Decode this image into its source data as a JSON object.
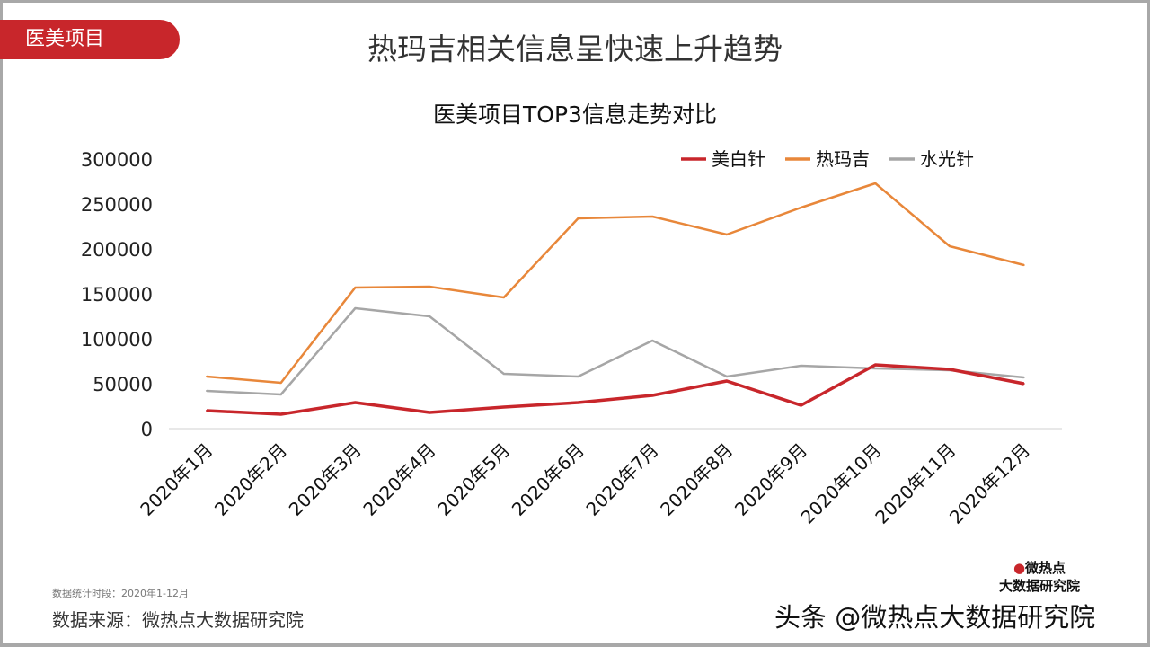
{
  "header": {
    "tag": "医美项目",
    "title": "热玛吉相关信息呈快速上升趋势"
  },
  "chart_data": {
    "type": "line",
    "title": "医美项目TOP3信息走势对比",
    "categories": [
      "2020年1月",
      "2020年2月",
      "2020年3月",
      "2020年4月",
      "2020年5月",
      "2020年6月",
      "2020年7月",
      "2020年8月",
      "2020年9月",
      "2020年10月",
      "2020年11月",
      "2020年12月"
    ],
    "ylim": [
      0,
      300000
    ],
    "yticks": [
      "0",
      "50000",
      "100000",
      "150000",
      "200000",
      "250000",
      "300000"
    ],
    "grid": false,
    "legend_position": "top-right",
    "series": [
      {
        "name": "美白针",
        "color": "#c8262b",
        "values": [
          20000,
          16000,
          29000,
          18000,
          24000,
          29000,
          37000,
          53000,
          26000,
          71000,
          66000,
          50000
        ]
      },
      {
        "name": "热玛吉",
        "color": "#e8873a",
        "values": [
          58000,
          51000,
          157000,
          158000,
          146000,
          234000,
          236000,
          216000,
          246000,
          273000,
          203000,
          182000
        ]
      },
      {
        "name": "水光针",
        "color": "#a6a6a6",
        "values": [
          42000,
          38000,
          134000,
          125000,
          61000,
          58000,
          98000,
          58000,
          70000,
          67000,
          65000,
          57000
        ]
      }
    ]
  },
  "footer": {
    "period": "数据统计时段：2020年1-12月",
    "source": "数据来源：微热点大数据研究院",
    "logo_top": "微热点",
    "logo_bottom": "大数据研究院",
    "watermark": "头条 @微热点大数据研究院"
  }
}
